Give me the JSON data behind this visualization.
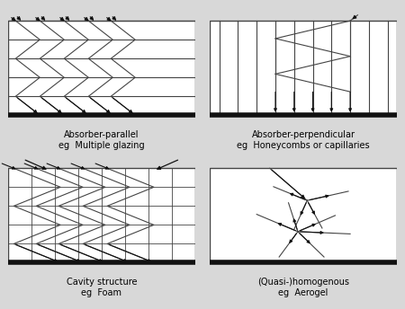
{
  "bg_color": "#d8d8d8",
  "labels": [
    [
      "Absorber-parallel",
      "eg  Multiple glazing"
    ],
    [
      "Absorber-perpendicular",
      "eg  Honeycombs or capillaries"
    ],
    [
      "Cavity structure",
      "eg  Foam"
    ],
    [
      "(Quasi-)homogenous",
      "eg  Aerogel"
    ]
  ],
  "line_color": "#444444",
  "arrow_color": "#111111"
}
